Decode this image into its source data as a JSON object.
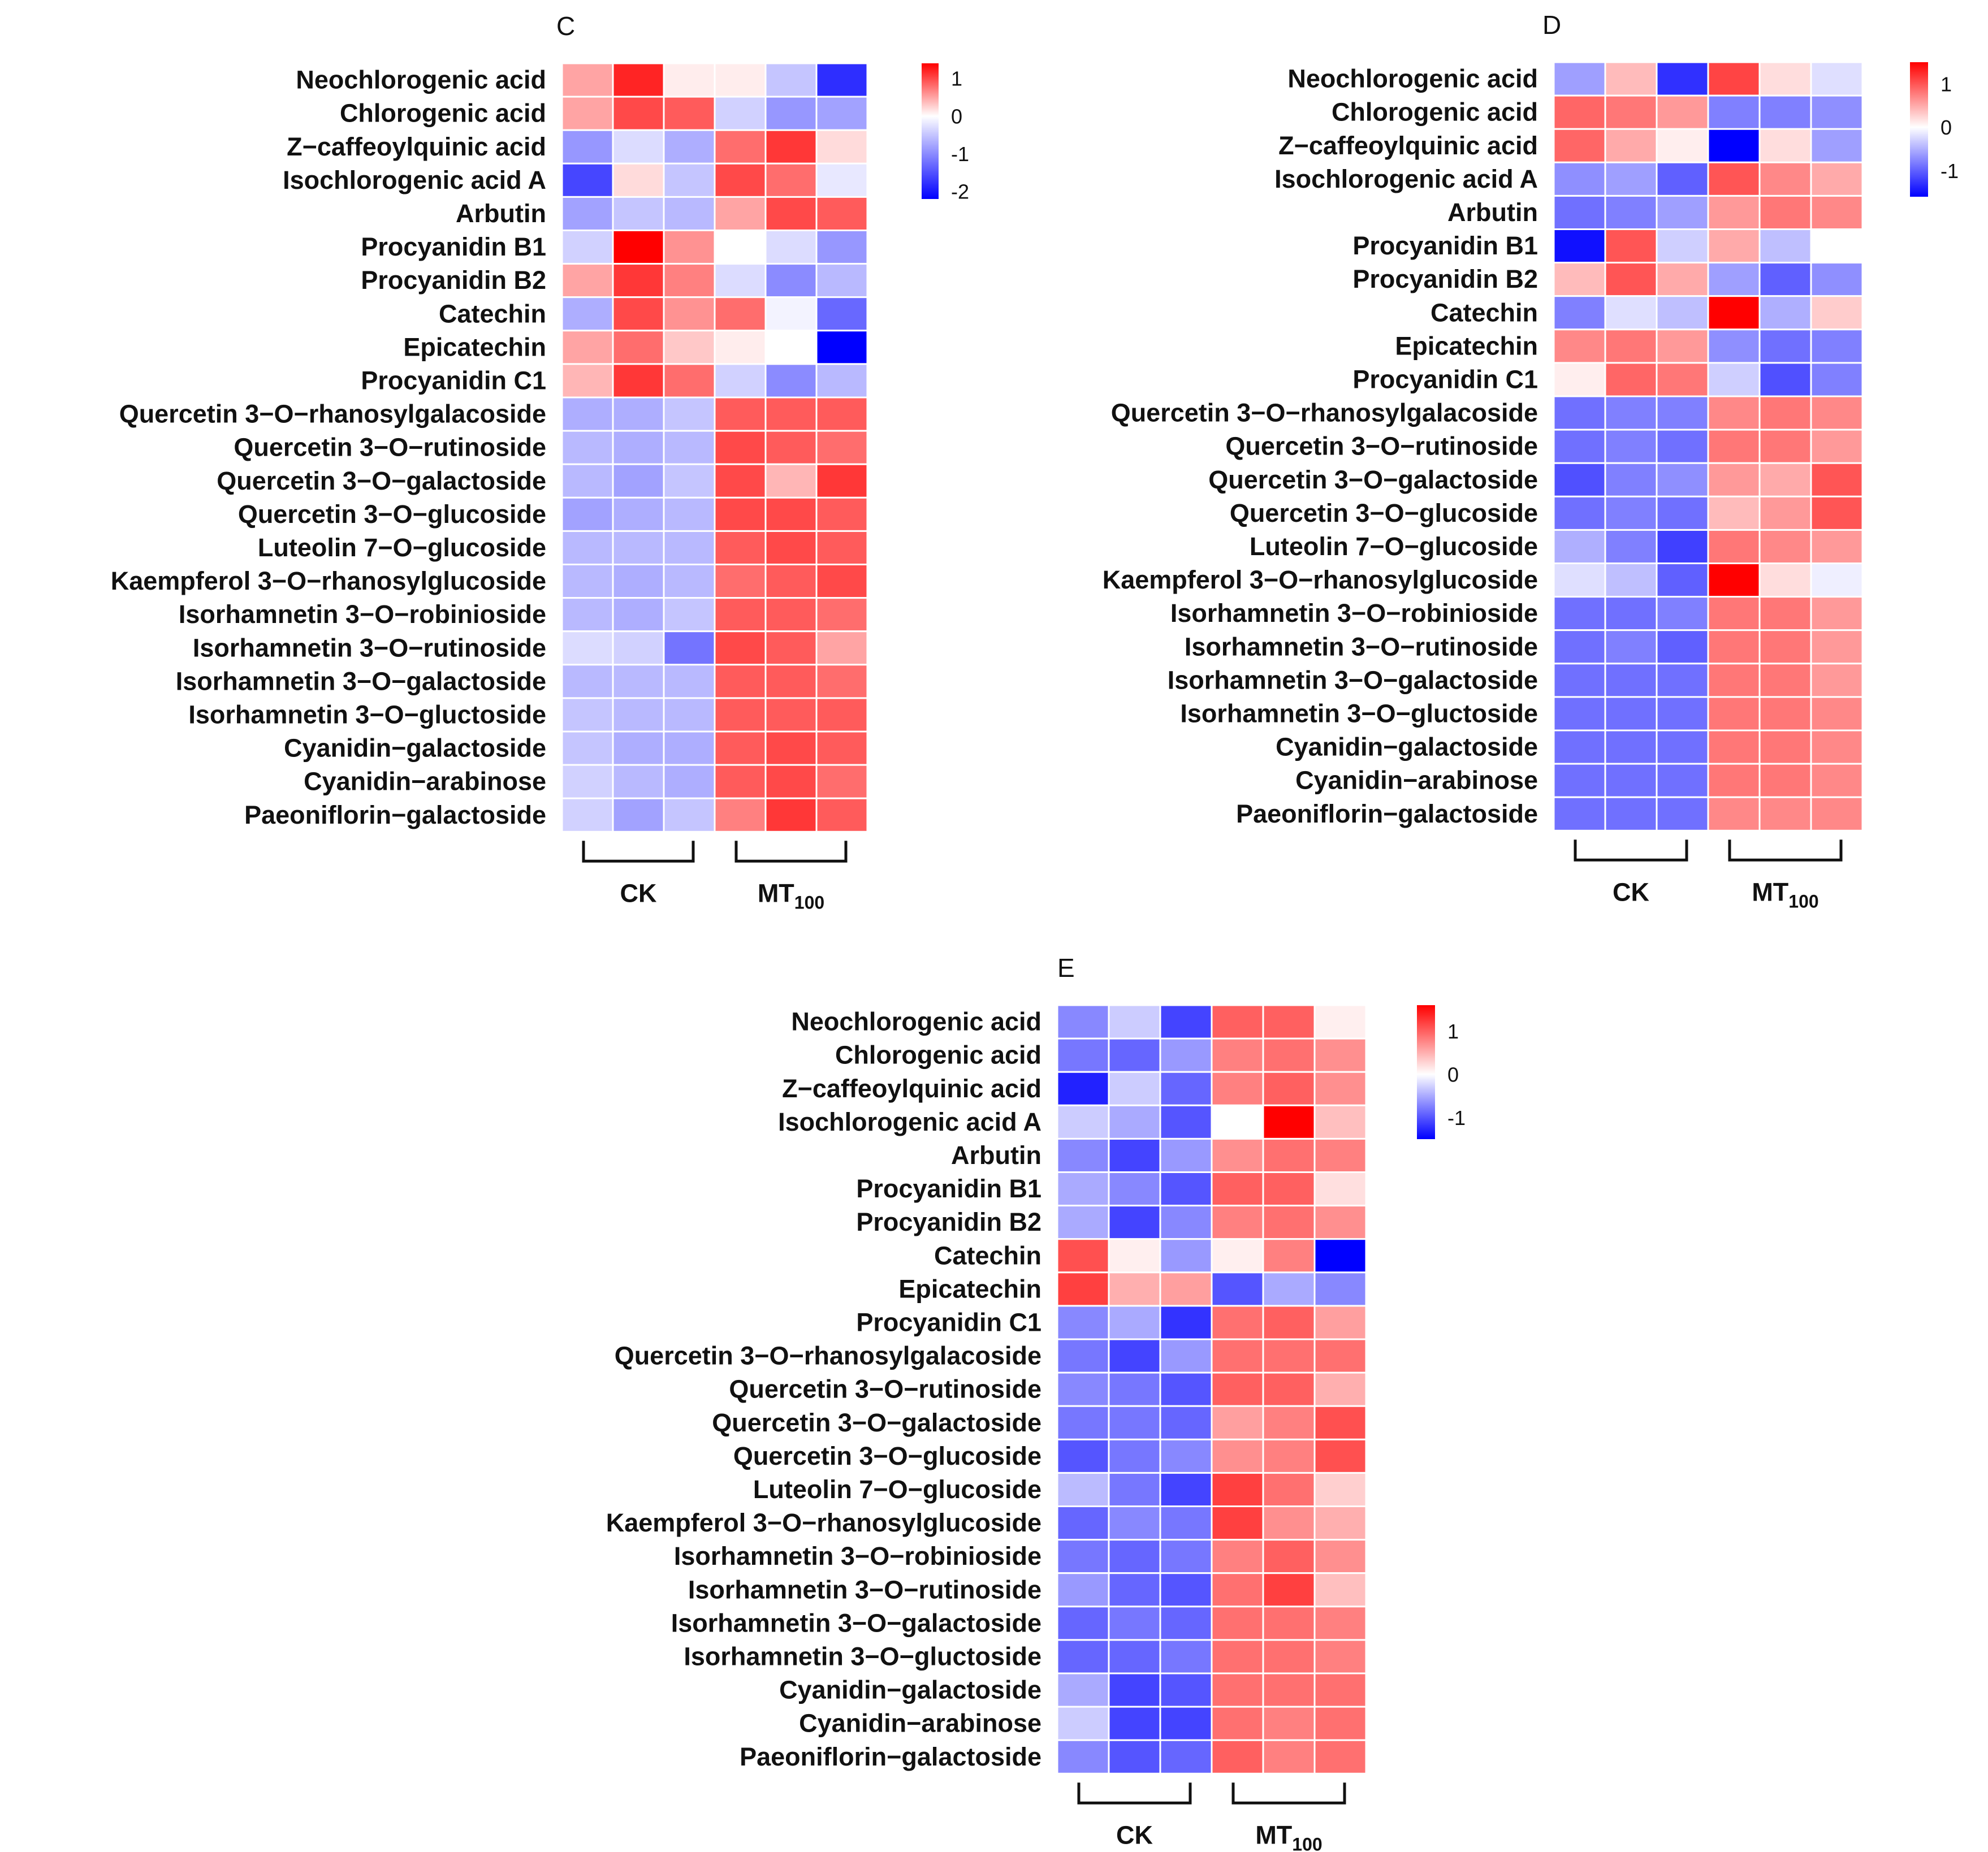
{
  "chart_data": [
    {
      "type": "heatmap",
      "panel": "C",
      "rows": [
        "Neochlorogenic acid",
        "Chlorogenic acid",
        "Z−caffeoylquinic acid",
        "Isochlorogenic acid A",
        "Arbutin",
        "Procyanidin B1",
        "Procyanidin B2",
        "Catechin",
        "Epicatechin",
        "Procyanidin C1",
        "Quercetin 3−O−rhanosylgalacoside",
        "Quercetin 3−O−rutinoside",
        "Quercetin 3−O−galactoside",
        "Quercetin 3−O−glucoside",
        "Luteolin 7−O−glucoside",
        "Kaempferol 3−O−rhanosylglucoside",
        "Isorhamnetin 3−O−robinioside",
        "Isorhamnetin 3−O−rutinoside",
        "Isorhamnetin 3−O−galactoside",
        "Isorhamnetin 3−O−gluctoside",
        "Cyanidin−galactoside",
        "Cyanidin−arabinose",
        "Paeoniflorin−galactoside"
      ],
      "groups": [
        {
          "label": "CK",
          "sub": "",
          "columns": 3
        },
        {
          "label": "MT",
          "sub": "100",
          "columns": 3
        }
      ],
      "values": [
        [
          0.5,
          1.2,
          0.1,
          0.1,
          -0.5,
          -1.8
        ],
        [
          0.5,
          1.0,
          0.9,
          -0.4,
          -0.9,
          -0.8
        ],
        [
          -0.9,
          -0.3,
          -0.7,
          0.8,
          1.1,
          0.2
        ],
        [
          -1.6,
          0.2,
          -0.5,
          1.0,
          0.8,
          -0.2
        ],
        [
          -0.8,
          -0.5,
          -0.6,
          0.5,
          1.0,
          0.9
        ],
        [
          -0.4,
          1.4,
          0.6,
          0.0,
          -0.3,
          -0.9
        ],
        [
          0.5,
          1.1,
          0.7,
          -0.3,
          -1.0,
          -0.6
        ],
        [
          -0.7,
          1.0,
          0.6,
          0.8,
          -0.1,
          -1.3
        ],
        [
          0.5,
          0.8,
          0.3,
          0.1,
          0.0,
          -2.2
        ],
        [
          0.4,
          1.1,
          0.8,
          -0.4,
          -1.0,
          -0.6
        ],
        [
          -0.7,
          -0.7,
          -0.5,
          0.9,
          0.9,
          0.9
        ],
        [
          -0.6,
          -0.7,
          -0.6,
          1.0,
          0.9,
          0.8
        ],
        [
          -0.6,
          -0.8,
          -0.5,
          1.0,
          0.4,
          1.1
        ],
        [
          -0.8,
          -0.7,
          -0.6,
          1.0,
          1.0,
          0.9
        ],
        [
          -0.6,
          -0.6,
          -0.6,
          0.9,
          1.0,
          0.9
        ],
        [
          -0.6,
          -0.7,
          -0.6,
          0.8,
          0.9,
          1.0
        ],
        [
          -0.6,
          -0.7,
          -0.5,
          0.9,
          0.9,
          0.8
        ],
        [
          -0.3,
          -0.4,
          -1.2,
          1.0,
          0.9,
          0.5
        ],
        [
          -0.6,
          -0.6,
          -0.6,
          0.9,
          0.9,
          0.8
        ],
        [
          -0.5,
          -0.6,
          -0.6,
          0.9,
          0.9,
          0.9
        ],
        [
          -0.5,
          -0.7,
          -0.7,
          0.9,
          1.0,
          0.9
        ],
        [
          -0.4,
          -0.6,
          -0.7,
          0.9,
          1.0,
          0.8
        ],
        [
          -0.4,
          -0.8,
          -0.5,
          0.7,
          1.1,
          0.9
        ]
      ],
      "legend": {
        "ticks": [
          1,
          0,
          -1,
          -2
        ],
        "range": [
          -2.2,
          1.4
        ]
      }
    },
    {
      "type": "heatmap",
      "panel": "D",
      "rows": [
        "Neochlorogenic acid",
        "Chlorogenic acid",
        "Z−caffeoylquinic acid",
        "Isochlorogenic acid A",
        "Arbutin",
        "Procyanidin B1",
        "Procyanidin B2",
        "Catechin",
        "Epicatechin",
        "Procyanidin C1",
        "Quercetin 3−O−rhanosylgalacoside",
        "Quercetin 3−O−rutinoside",
        "Quercetin 3−O−galactoside",
        "Quercetin 3−O−glucoside",
        "Luteolin 7−O−glucoside",
        "Kaempferol 3−O−rhanosylglucoside",
        "Isorhamnetin 3−O−robinioside",
        "Isorhamnetin 3−O−rutinoside",
        "Isorhamnetin 3−O−galactoside",
        "Isorhamnetin 3−O−gluctoside",
        "Cyanidin−galactoside",
        "Cyanidin−arabinose",
        "Paeoniflorin−galactoside"
      ],
      "groups": [
        {
          "label": "CK",
          "sub": "",
          "columns": 3
        },
        {
          "label": "MT",
          "sub": "100",
          "columns": 3
        }
      ],
      "values": [
        [
          -0.6,
          0.4,
          -1.3,
          1.1,
          0.2,
          -0.2
        ],
        [
          0.9,
          0.8,
          0.6,
          -0.8,
          -0.8,
          -0.7
        ],
        [
          0.9,
          0.5,
          0.1,
          -1.6,
          0.2,
          -0.6
        ],
        [
          -0.7,
          -0.6,
          -1.0,
          1.0,
          0.7,
          0.5
        ],
        [
          -0.9,
          -0.8,
          -0.6,
          0.6,
          0.8,
          0.7
        ],
        [
          -1.5,
          1.0,
          -0.3,
          0.5,
          -0.4,
          0.0
        ],
        [
          0.4,
          1.0,
          0.5,
          -0.6,
          -1.0,
          -0.7
        ],
        [
          -0.8,
          -0.2,
          -0.4,
          1.5,
          -0.5,
          0.3
        ],
        [
          0.7,
          0.8,
          0.6,
          -0.7,
          -0.9,
          -0.8
        ],
        [
          0.1,
          0.9,
          0.8,
          -0.3,
          -1.1,
          -0.8
        ],
        [
          -0.9,
          -0.8,
          -0.8,
          0.7,
          0.8,
          0.7
        ],
        [
          -0.9,
          -0.8,
          -0.9,
          0.8,
          0.8,
          0.6
        ],
        [
          -1.1,
          -0.8,
          -0.7,
          0.6,
          0.5,
          1.0
        ],
        [
          -0.9,
          -0.8,
          -0.9,
          0.4,
          0.6,
          1.0
        ],
        [
          -0.5,
          -0.8,
          -1.2,
          0.8,
          0.7,
          0.6
        ],
        [
          -0.2,
          -0.4,
          -1.0,
          1.5,
          0.2,
          -0.1
        ],
        [
          -0.9,
          -0.9,
          -0.8,
          0.8,
          0.8,
          0.6
        ],
        [
          -0.9,
          -0.8,
          -1.0,
          0.8,
          0.8,
          0.6
        ],
        [
          -0.9,
          -0.9,
          -0.9,
          0.8,
          0.8,
          0.6
        ],
        [
          -0.9,
          -0.9,
          -0.9,
          0.8,
          0.8,
          0.7
        ],
        [
          -0.9,
          -0.9,
          -0.9,
          0.8,
          0.8,
          0.7
        ],
        [
          -0.9,
          -0.9,
          -0.9,
          0.8,
          0.8,
          0.7
        ],
        [
          -0.9,
          -0.9,
          -0.9,
          0.7,
          0.7,
          0.7
        ]
      ],
      "legend": {
        "ticks": [
          1,
          0,
          -1
        ],
        "range": [
          -1.6,
          1.5
        ]
      }
    },
    {
      "type": "heatmap",
      "panel": "E",
      "rows": [
        "Neochlorogenic acid",
        "Chlorogenic acid",
        "Z−caffeoylquinic acid",
        "Isochlorogenic acid A",
        "Arbutin",
        "Procyanidin B1",
        "Procyanidin B2",
        "Catechin",
        "Epicatechin",
        "Procyanidin C1",
        "Quercetin 3−O−rhanosylgalacoside",
        "Quercetin 3−O−rutinoside",
        "Quercetin 3−O−galactoside",
        "Quercetin 3−O−glucoside",
        "Luteolin 7−O−glucoside",
        "Kaempferol 3−O−rhanosylglucoside",
        "Isorhamnetin 3−O−robinioside",
        "Isorhamnetin 3−O−rutinoside",
        "Isorhamnetin 3−O−galactoside",
        "Isorhamnetin 3−O−gluctoside",
        "Cyanidin−galactoside",
        "Cyanidin−arabinose",
        "Paeoniflorin−galactoside"
      ],
      "groups": [
        {
          "label": "CK",
          "sub": "",
          "columns": 3
        },
        {
          "label": "MT",
          "sub": "100",
          "columns": 3
        }
      ],
      "values": [
        [
          -0.7,
          -0.3,
          -1.1,
          1.0,
          1.0,
          0.1
        ],
        [
          -0.8,
          -0.9,
          -0.6,
          0.8,
          0.9,
          0.7
        ],
        [
          -1.3,
          -0.3,
          -0.9,
          0.8,
          1.0,
          0.7
        ],
        [
          -0.3,
          -0.5,
          -1.0,
          0.0,
          1.6,
          0.4
        ],
        [
          -0.7,
          -1.1,
          -0.6,
          0.7,
          0.9,
          0.8
        ],
        [
          -0.5,
          -0.7,
          -1.0,
          1.0,
          1.0,
          0.2
        ],
        [
          -0.5,
          -1.1,
          -0.7,
          0.8,
          0.9,
          0.7
        ],
        [
          1.1,
          0.1,
          -0.6,
          0.1,
          0.8,
          -1.5
        ],
        [
          1.2,
          0.5,
          0.6,
          -1.0,
          -0.5,
          -0.7
        ],
        [
          -0.7,
          -0.5,
          -1.2,
          0.9,
          1.0,
          0.6
        ],
        [
          -0.8,
          -1.1,
          -0.6,
          0.9,
          0.9,
          0.9
        ],
        [
          -0.7,
          -0.8,
          -1.0,
          1.0,
          1.0,
          0.5
        ],
        [
          -0.8,
          -0.8,
          -0.9,
          0.6,
          0.8,
          1.1
        ],
        [
          -1.0,
          -0.8,
          -0.7,
          0.7,
          0.8,
          1.1
        ],
        [
          -0.4,
          -0.8,
          -1.1,
          1.2,
          0.9,
          0.3
        ],
        [
          -0.9,
          -0.7,
          -0.8,
          1.2,
          0.7,
          0.5
        ],
        [
          -0.8,
          -0.9,
          -0.8,
          0.8,
          1.0,
          0.7
        ],
        [
          -0.6,
          -0.9,
          -1.0,
          0.9,
          1.2,
          0.4
        ],
        [
          -0.9,
          -0.8,
          -0.9,
          0.9,
          0.9,
          0.8
        ],
        [
          -0.9,
          -0.9,
          -0.8,
          0.9,
          0.9,
          0.8
        ],
        [
          -0.5,
          -1.1,
          -1.0,
          0.9,
          0.9,
          0.9
        ],
        [
          -0.3,
          -1.1,
          -1.1,
          0.9,
          0.8,
          0.9
        ],
        [
          -0.7,
          -1.0,
          -0.9,
          1.0,
          0.8,
          0.9
        ]
      ],
      "legend": {
        "ticks": [
          1,
          0,
          -1
        ],
        "range": [
          -1.5,
          1.6
        ]
      }
    }
  ]
}
